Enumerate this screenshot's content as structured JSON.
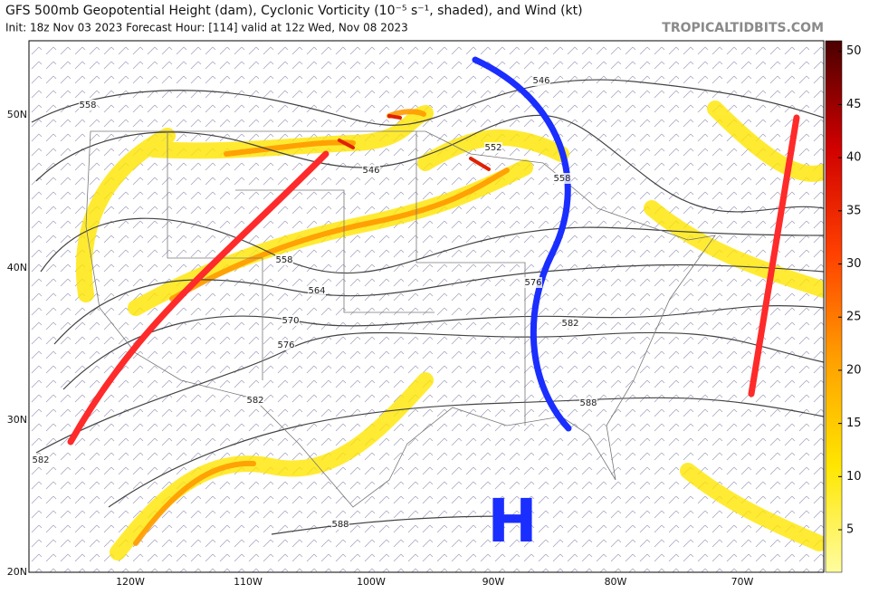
{
  "map": {
    "title": "GFS 500mb Geopotential Height (dam), Cyclonic Vorticity (10⁻⁵ s⁻¹, shaded), and Wind (kt)",
    "subtitle": "Init: 18z Nov 03 2023   Forecast Hour: [114]   valid at 12z Wed, Nov 08 2023",
    "brand": "TROPICALTIDBITS.COM",
    "lat_labels": [
      "50N",
      "40N",
      "30N",
      "20N"
    ],
    "lon_labels": [
      "120W",
      "110W",
      "100W",
      "90W",
      "80W",
      "70W"
    ],
    "contour_labels": [
      "558",
      "546",
      "552",
      "558",
      "546",
      "558",
      "564",
      "570",
      "576",
      "576",
      "582",
      "582",
      "588",
      "582",
      "588"
    ],
    "high_label": "H",
    "colorbar": {
      "range": [
        1,
        51
      ],
      "ticks": [
        5,
        10,
        15,
        20,
        25,
        30,
        35,
        40,
        45,
        50
      ]
    }
  }
}
